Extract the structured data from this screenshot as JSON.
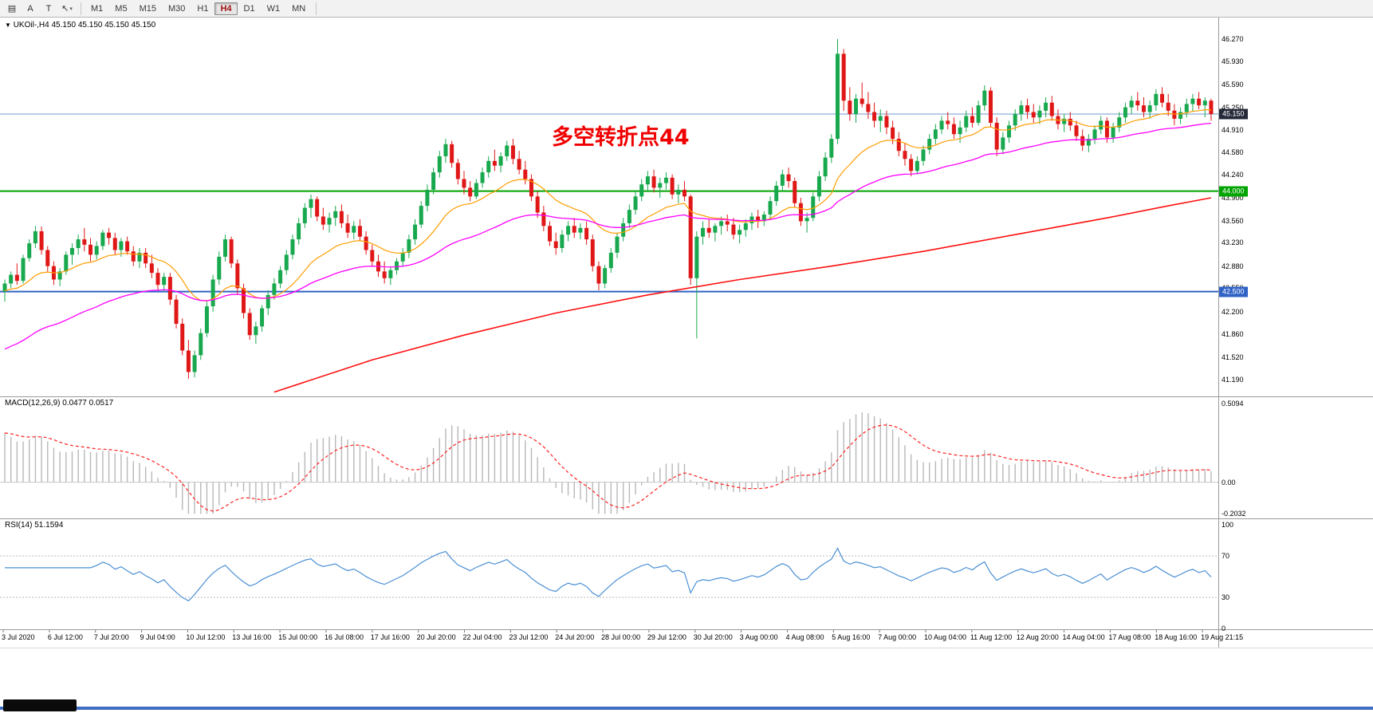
{
  "toolbar": {
    "tools": [
      {
        "glyph": "▤",
        "name": "indicators"
      },
      {
        "glyph": "A",
        "name": "text-label"
      },
      {
        "glyph": "T",
        "name": "text-tool"
      },
      {
        "glyph": "↖",
        "name": "cursor-tool",
        "caret": "▾"
      }
    ],
    "timeframes": [
      "M1",
      "M5",
      "M15",
      "M30",
      "H1",
      "H4",
      "D1",
      "W1",
      "MN"
    ],
    "active_timeframe": "H4"
  },
  "chart": {
    "symbol_caret": "▼",
    "symbol_label": "UKOil-,H4",
    "ohlc_label": "45.150 45.150 45.150 45.150",
    "annotation": {
      "text": "多空转折点44",
      "color": "#f00000"
    }
  },
  "colors": {
    "up": "#18a84e",
    "down": "#e01717",
    "ma_fast": "#ff9d00",
    "ma_mid": "#ff00ff",
    "ma_slow": "#ff1010",
    "separator": "#9a9a9a"
  },
  "chart_data": {
    "type": "candlestick",
    "title": "UKOil-,H4",
    "price_axis": [
      46.27,
      45.93,
      45.59,
      45.25,
      44.91,
      44.58,
      44.24,
      43.9,
      43.56,
      43.23,
      42.88,
      42.55,
      42.2,
      41.86,
      41.52,
      41.19
    ],
    "levels": [
      {
        "price": 45.15,
        "label": "45.150",
        "color": "#6f9bd1",
        "tag_bg": "#252a3a",
        "width": 1
      },
      {
        "price": 44.0,
        "label": "44.000",
        "color": "#00a400",
        "tag_bg": "#00a400",
        "width": 2
      },
      {
        "price": 42.5,
        "label": "42.500",
        "color": "#2f62c5",
        "tag_bg": "#2f62c5",
        "width": 2
      }
    ],
    "moving_averages": {
      "fast_period": 18,
      "mid_period": 50,
      "slow_anchors": [
        [
          44,
          41.0
        ],
        [
          60,
          41.48
        ],
        [
          75,
          41.85
        ],
        [
          90,
          42.18
        ],
        [
          105,
          42.45
        ],
        [
          120,
          42.68
        ],
        [
          135,
          42.88
        ],
        [
          150,
          43.1
        ],
        [
          165,
          43.35
        ],
        [
          180,
          43.6
        ],
        [
          190,
          43.78
        ],
        [
          197,
          43.9
        ]
      ]
    },
    "macd": {
      "label": "MACD(12,26,9) 0.0477 0.0517",
      "params": [
        12,
        26,
        9
      ],
      "axis": [
        {
          "label": "0.5094",
          "value": 0.5094
        },
        {
          "label": "0.00",
          "value": 0
        },
        {
          "label": "-0.2032",
          "value": -0.2032
        }
      ],
      "hist_color": "#b8b8b8",
      "signal_color": "#ff2020"
    },
    "rsi": {
      "label": "RSI(14) 51.1594",
      "period": 14,
      "axis": [
        {
          "label": "100",
          "value": 100
        },
        {
          "label": "70",
          "value": 70
        },
        {
          "label": "30",
          "value": 30
        },
        {
          "label": "0",
          "value": 0
        }
      ],
      "levels": [
        70,
        30
      ],
      "color": "#4a8fd4"
    },
    "time_axis": [
      "3 Jul 2020",
      "6 Jul 12:00",
      "7 Jul 20:00",
      "9 Jul 04:00",
      "10 Jul 12:00",
      "13 Jul 16:00",
      "15 Jul 00:00",
      "16 Jul 08:00",
      "17 Jul 16:00",
      "20 Jul 20:00",
      "22 Jul 04:00",
      "23 Jul 12:00",
      "24 Jul 20:00",
      "28 Jul 00:00",
      "29 Jul 12:00",
      "30 Jul 20:00",
      "3 Aug 00:00",
      "4 Aug 08:00",
      "5 Aug 16:00",
      "7 Aug 00:00",
      "10 Aug 04:00",
      "11 Aug 12:00",
      "12 Aug 20:00",
      "14 Aug 04:00",
      "17 Aug 08:00",
      "18 Aug 16:00",
      "19 Aug 21:15"
    ],
    "candles": [
      [
        42.5,
        42.68,
        42.35,
        42.62
      ],
      [
        42.62,
        42.8,
        42.55,
        42.75
      ],
      [
        42.75,
        42.92,
        42.6,
        42.66
      ],
      [
        42.66,
        43.05,
        42.62,
        43.0
      ],
      [
        43.0,
        43.28,
        42.95,
        43.22
      ],
      [
        43.22,
        43.48,
        43.15,
        43.4
      ],
      [
        43.4,
        43.47,
        43.05,
        43.12
      ],
      [
        43.12,
        43.18,
        42.8,
        42.88
      ],
      [
        42.88,
        42.95,
        42.6,
        42.68
      ],
      [
        42.68,
        42.85,
        42.58,
        42.8
      ],
      [
        42.8,
        43.1,
        42.75,
        43.05
      ],
      [
        43.05,
        43.22,
        42.9,
        43.15
      ],
      [
        43.15,
        43.35,
        43.05,
        43.28
      ],
      [
        43.28,
        43.45,
        43.1,
        43.2
      ],
      [
        43.2,
        43.3,
        42.95,
        43.05
      ],
      [
        43.05,
        43.25,
        42.98,
        43.18
      ],
      [
        43.18,
        43.42,
        43.12,
        43.38
      ],
      [
        43.38,
        43.45,
        43.2,
        43.3
      ],
      [
        43.3,
        43.38,
        43.05,
        43.12
      ],
      [
        43.12,
        43.3,
        43.02,
        43.25
      ],
      [
        43.25,
        43.32,
        43.05,
        43.1
      ],
      [
        43.1,
        43.18,
        42.88,
        42.95
      ],
      [
        42.95,
        43.15,
        42.85,
        43.08
      ],
      [
        43.08,
        43.15,
        42.85,
        42.92
      ],
      [
        42.92,
        43.05,
        42.7,
        42.78
      ],
      [
        42.78,
        42.85,
        42.52,
        42.6
      ],
      [
        42.6,
        42.78,
        42.5,
        42.72
      ],
      [
        42.72,
        42.78,
        42.3,
        42.38
      ],
      [
        42.38,
        42.45,
        41.95,
        42.02
      ],
      [
        42.02,
        42.1,
        41.55,
        41.62
      ],
      [
        41.62,
        41.78,
        41.2,
        41.3
      ],
      [
        41.3,
        41.62,
        41.22,
        41.55
      ],
      [
        41.55,
        41.95,
        41.48,
        41.88
      ],
      [
        41.88,
        42.35,
        41.82,
        42.28
      ],
      [
        42.28,
        42.75,
        42.2,
        42.68
      ],
      [
        42.68,
        43.1,
        42.6,
        43.02
      ],
      [
        43.02,
        43.35,
        42.95,
        43.28
      ],
      [
        43.28,
        43.32,
        42.85,
        42.92
      ],
      [
        42.92,
        42.98,
        42.45,
        42.55
      ],
      [
        42.55,
        42.62,
        42.1,
        42.18
      ],
      [
        42.18,
        42.25,
        41.78,
        41.85
      ],
      [
        41.85,
        42.05,
        41.72,
        41.98
      ],
      [
        41.98,
        42.3,
        41.9,
        42.25
      ],
      [
        42.25,
        42.52,
        42.15,
        42.45
      ],
      [
        42.45,
        42.7,
        42.38,
        42.62
      ],
      [
        42.62,
        42.88,
        42.55,
        42.82
      ],
      [
        42.82,
        43.12,
        42.75,
        43.05
      ],
      [
        43.05,
        43.35,
        42.98,
        43.28
      ],
      [
        43.28,
        43.6,
        43.2,
        43.52
      ],
      [
        43.52,
        43.82,
        43.45,
        43.75
      ],
      [
        43.75,
        43.95,
        43.6,
        43.88
      ],
      [
        43.88,
        43.92,
        43.55,
        43.62
      ],
      [
        43.62,
        43.75,
        43.42,
        43.5
      ],
      [
        43.5,
        43.68,
        43.38,
        43.6
      ],
      [
        43.6,
        43.78,
        43.48,
        43.7
      ],
      [
        43.7,
        43.8,
        43.45,
        43.52
      ],
      [
        43.52,
        43.65,
        43.3,
        43.38
      ],
      [
        43.38,
        43.55,
        43.28,
        43.48
      ],
      [
        43.48,
        43.58,
        43.25,
        43.32
      ],
      [
        43.32,
        43.4,
        43.05,
        43.12
      ],
      [
        43.12,
        43.2,
        42.88,
        42.95
      ],
      [
        42.95,
        43.05,
        42.72,
        42.8
      ],
      [
        42.8,
        42.95,
        42.62,
        42.7
      ],
      [
        42.7,
        42.88,
        42.6,
        42.82
      ],
      [
        42.82,
        43.0,
        42.75,
        42.95
      ],
      [
        42.95,
        43.15,
        42.88,
        43.08
      ],
      [
        43.08,
        43.35,
        43.0,
        43.28
      ],
      [
        43.28,
        43.58,
        43.2,
        43.5
      ],
      [
        43.5,
        43.85,
        43.45,
        43.78
      ],
      [
        43.78,
        44.1,
        43.7,
        44.02
      ],
      [
        44.02,
        44.35,
        43.95,
        44.28
      ],
      [
        44.28,
        44.6,
        44.2,
        44.52
      ],
      [
        44.52,
        44.78,
        44.42,
        44.7
      ],
      [
        44.7,
        44.75,
        44.35,
        44.42
      ],
      [
        44.42,
        44.48,
        44.1,
        44.18
      ],
      [
        44.18,
        44.3,
        43.95,
        44.05
      ],
      [
        44.05,
        44.15,
        43.85,
        43.92
      ],
      [
        43.92,
        44.18,
        43.88,
        44.12
      ],
      [
        44.12,
        44.35,
        44.05,
        44.28
      ],
      [
        44.28,
        44.52,
        44.2,
        44.45
      ],
      [
        44.45,
        44.62,
        44.3,
        44.38
      ],
      [
        44.38,
        44.58,
        44.28,
        44.52
      ],
      [
        44.52,
        44.75,
        44.45,
        44.68
      ],
      [
        44.68,
        44.78,
        44.4,
        44.48
      ],
      [
        44.48,
        44.6,
        44.25,
        44.32
      ],
      [
        44.32,
        44.45,
        44.1,
        44.18
      ],
      [
        44.18,
        44.25,
        43.85,
        43.92
      ],
      [
        43.92,
        44.0,
        43.6,
        43.68
      ],
      [
        43.68,
        43.78,
        43.4,
        43.48
      ],
      [
        43.48,
        43.55,
        43.18,
        43.25
      ],
      [
        43.25,
        43.38,
        43.05,
        43.15
      ],
      [
        43.15,
        43.42,
        43.08,
        43.35
      ],
      [
        43.35,
        43.55,
        43.25,
        43.48
      ],
      [
        43.48,
        43.6,
        43.3,
        43.38
      ],
      [
        43.38,
        43.52,
        43.28,
        43.45
      ],
      [
        43.45,
        43.55,
        43.2,
        43.28
      ],
      [
        43.28,
        43.35,
        42.8,
        42.88
      ],
      [
        42.88,
        42.95,
        42.52,
        42.62
      ],
      [
        42.62,
        42.9,
        42.55,
        42.85
      ],
      [
        42.85,
        43.15,
        42.78,
        43.08
      ],
      [
        43.08,
        43.38,
        43.0,
        43.32
      ],
      [
        43.32,
        43.6,
        43.25,
        43.52
      ],
      [
        43.52,
        43.8,
        43.45,
        43.72
      ],
      [
        43.72,
        44.0,
        43.65,
        43.92
      ],
      [
        43.92,
        44.18,
        43.85,
        44.1
      ],
      [
        44.1,
        44.3,
        44.0,
        44.22
      ],
      [
        44.22,
        44.32,
        43.98,
        44.05
      ],
      [
        44.05,
        44.2,
        43.9,
        44.12
      ],
      [
        44.12,
        44.28,
        44.02,
        44.2
      ],
      [
        44.2,
        44.25,
        43.88,
        43.95
      ],
      [
        43.95,
        44.1,
        43.82,
        44.02
      ],
      [
        44.02,
        44.15,
        43.85,
        43.92
      ],
      [
        43.92,
        43.95,
        42.6,
        42.7
      ],
      [
        42.7,
        43.4,
        41.8,
        43.32
      ],
      [
        43.32,
        43.55,
        43.2,
        43.45
      ],
      [
        43.45,
        43.58,
        43.3,
        43.38
      ],
      [
        43.38,
        43.52,
        43.25,
        43.48
      ],
      [
        43.48,
        43.62,
        43.35,
        43.55
      ],
      [
        43.55,
        43.65,
        43.4,
        43.5
      ],
      [
        43.5,
        43.6,
        43.28,
        43.35
      ],
      [
        43.35,
        43.5,
        43.22,
        43.42
      ],
      [
        43.42,
        43.58,
        43.32,
        43.52
      ],
      [
        43.52,
        43.68,
        43.42,
        43.62
      ],
      [
        43.62,
        43.72,
        43.45,
        43.55
      ],
      [
        43.55,
        43.7,
        43.48,
        43.65
      ],
      [
        43.65,
        43.92,
        43.58,
        43.85
      ],
      [
        43.85,
        44.15,
        43.78,
        44.08
      ],
      [
        44.08,
        44.32,
        44.0,
        44.25
      ],
      [
        44.25,
        44.35,
        44.05,
        44.15
      ],
      [
        44.15,
        44.2,
        43.75,
        43.82
      ],
      [
        43.82,
        43.9,
        43.48,
        43.55
      ],
      [
        43.55,
        43.68,
        43.38,
        43.6
      ],
      [
        43.6,
        43.98,
        43.55,
        43.92
      ],
      [
        43.92,
        44.3,
        43.85,
        44.22
      ],
      [
        44.22,
        44.58,
        44.15,
        44.5
      ],
      [
        44.5,
        44.85,
        44.42,
        44.78
      ],
      [
        44.78,
        46.27,
        44.7,
        46.05
      ],
      [
        46.05,
        46.12,
        45.2,
        45.35
      ],
      [
        45.35,
        45.55,
        45.05,
        45.15
      ],
      [
        45.15,
        45.45,
        45.02,
        45.38
      ],
      [
        45.38,
        45.62,
        45.25,
        45.3
      ],
      [
        45.3,
        45.48,
        45.08,
        45.18
      ],
      [
        45.18,
        45.32,
        44.95,
        45.05
      ],
      [
        45.05,
        45.22,
        44.88,
        45.12
      ],
      [
        45.12,
        45.2,
        44.85,
        44.95
      ],
      [
        44.95,
        45.05,
        44.7,
        44.78
      ],
      [
        44.78,
        44.88,
        44.52,
        44.6
      ],
      [
        44.6,
        44.72,
        44.38,
        44.48
      ],
      [
        44.48,
        44.55,
        44.22,
        44.3
      ],
      [
        44.3,
        44.52,
        44.25,
        44.45
      ],
      [
        44.45,
        44.68,
        44.38,
        44.62
      ],
      [
        44.62,
        44.85,
        44.55,
        44.78
      ],
      [
        44.78,
        45.0,
        44.7,
        44.92
      ],
      [
        44.92,
        45.12,
        44.85,
        45.05
      ],
      [
        45.05,
        45.18,
        44.92,
        45.0
      ],
      [
        45.0,
        45.1,
        44.78,
        44.85
      ],
      [
        44.85,
        45.05,
        44.72,
        44.95
      ],
      [
        44.95,
        45.2,
        44.88,
        45.12
      ],
      [
        45.12,
        45.25,
        44.95,
        45.02
      ],
      [
        45.02,
        45.35,
        44.98,
        45.28
      ],
      [
        45.28,
        45.58,
        45.2,
        45.5
      ],
      [
        45.5,
        45.55,
        44.95,
        45.02
      ],
      [
        45.02,
        45.1,
        44.52,
        44.62
      ],
      [
        44.62,
        44.88,
        44.55,
        44.8
      ],
      [
        44.8,
        45.05,
        44.72,
        44.98
      ],
      [
        44.98,
        45.22,
        44.9,
        45.15
      ],
      [
        45.15,
        45.35,
        45.05,
        45.28
      ],
      [
        45.28,
        45.38,
        45.08,
        45.18
      ],
      [
        45.18,
        45.3,
        45.02,
        45.1
      ],
      [
        45.1,
        45.28,
        45.0,
        45.2
      ],
      [
        45.2,
        45.4,
        45.1,
        45.32
      ],
      [
        45.32,
        45.42,
        45.05,
        45.12
      ],
      [
        45.12,
        45.22,
        44.92,
        45.0
      ],
      [
        45.0,
        45.15,
        44.88,
        45.08
      ],
      [
        45.08,
        45.18,
        44.9,
        44.98
      ],
      [
        44.98,
        45.05,
        44.75,
        44.82
      ],
      [
        44.82,
        44.92,
        44.6,
        44.68
      ],
      [
        44.68,
        44.85,
        44.58,
        44.78
      ],
      [
        44.78,
        44.98,
        44.7,
        44.92
      ],
      [
        44.92,
        45.12,
        44.85,
        45.05
      ],
      [
        45.05,
        45.1,
        44.72,
        44.8
      ],
      [
        44.8,
        45.02,
        44.72,
        44.95
      ],
      [
        44.95,
        45.18,
        44.88,
        45.1
      ],
      [
        45.1,
        45.32,
        45.02,
        45.25
      ],
      [
        45.25,
        45.42,
        45.15,
        45.35
      ],
      [
        45.35,
        45.48,
        45.2,
        45.28
      ],
      [
        45.28,
        45.4,
        45.1,
        45.18
      ],
      [
        45.18,
        45.35,
        45.08,
        45.28
      ],
      [
        45.28,
        45.52,
        45.2,
        45.45
      ],
      [
        45.45,
        45.55,
        45.25,
        45.32
      ],
      [
        45.32,
        45.45,
        45.12,
        45.2
      ],
      [
        45.2,
        45.3,
        44.98,
        45.08
      ],
      [
        45.08,
        45.25,
        45.0,
        45.18
      ],
      [
        45.18,
        45.38,
        45.1,
        45.3
      ],
      [
        45.3,
        45.45,
        45.18,
        45.38
      ],
      [
        45.38,
        45.48,
        45.22,
        45.28
      ],
      [
        45.28,
        45.4,
        45.1,
        45.35
      ],
      [
        45.35,
        45.38,
        45.05,
        45.15
      ]
    ]
  }
}
